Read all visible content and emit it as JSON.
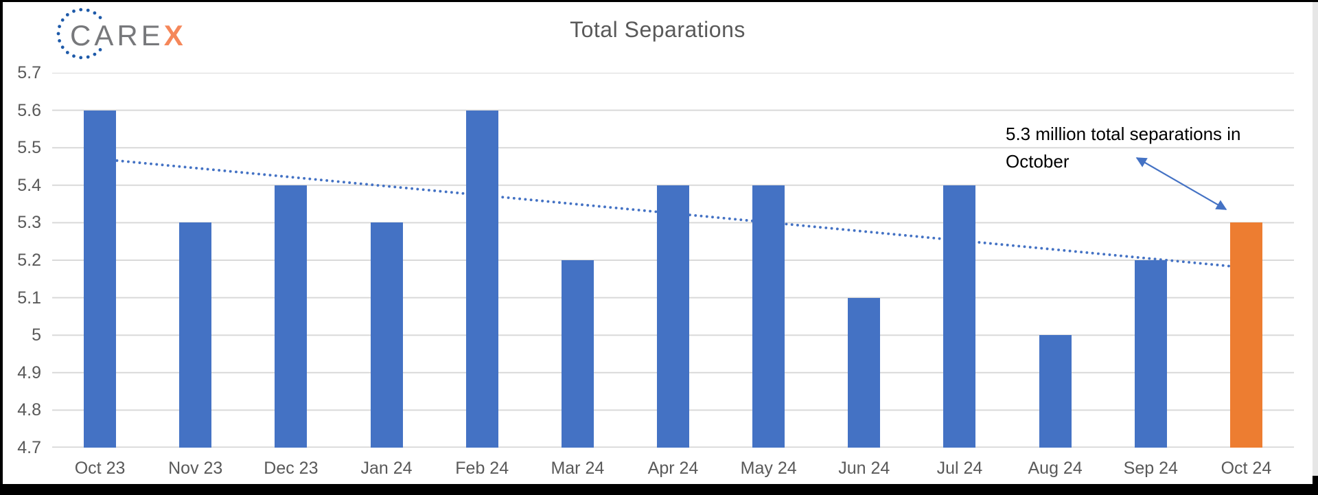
{
  "logo": {
    "brand": "CARE",
    "accent": "X"
  },
  "chart_data": {
    "type": "bar",
    "title": "Total Separations",
    "categories": [
      "Oct 23",
      "Nov 23",
      "Dec 23",
      "Jan 24",
      "Feb 24",
      "Mar 24",
      "Apr 24",
      "May 24",
      "Jun 24",
      "Jul 24",
      "Aug 24",
      "Sep 24",
      "Oct 24"
    ],
    "values": [
      5.6,
      5.3,
      5.4,
      5.3,
      5.6,
      5.2,
      5.4,
      5.4,
      5.1,
      5.4,
      5.0,
      5.2,
      5.3
    ],
    "ylim": [
      4.7,
      5.7
    ],
    "ytick_labels": [
      "5.7",
      "5.6",
      "5.5",
      "5.4",
      "5.3",
      "5.2",
      "5.1",
      "5",
      "4.9",
      "4.8",
      "4.7"
    ],
    "grid": true,
    "legend_position": "none",
    "bar_color": "#4472C4",
    "highlight_color": "#ED7D31",
    "highlight_index": 12,
    "trendline": {
      "style": "dotted",
      "color": "#4472C4",
      "start": 5.47,
      "end": 5.18
    },
    "annotation": {
      "text": "5.3 million total separations in October",
      "color": "#000000",
      "arrow_color": "#4472C4"
    }
  },
  "colors": {
    "title_gray": "#595959",
    "axis_label_gray": "#595959",
    "gridline": "#D9D9D9",
    "axis_line": "#D2D2D2",
    "logo_gray": "#77787B",
    "logo_accent_orange": "#F5875A",
    "logo_dots_blue": "#1E5AA9",
    "frame_black": "#000000",
    "window_edge_gray": "#E6E6E6"
  }
}
